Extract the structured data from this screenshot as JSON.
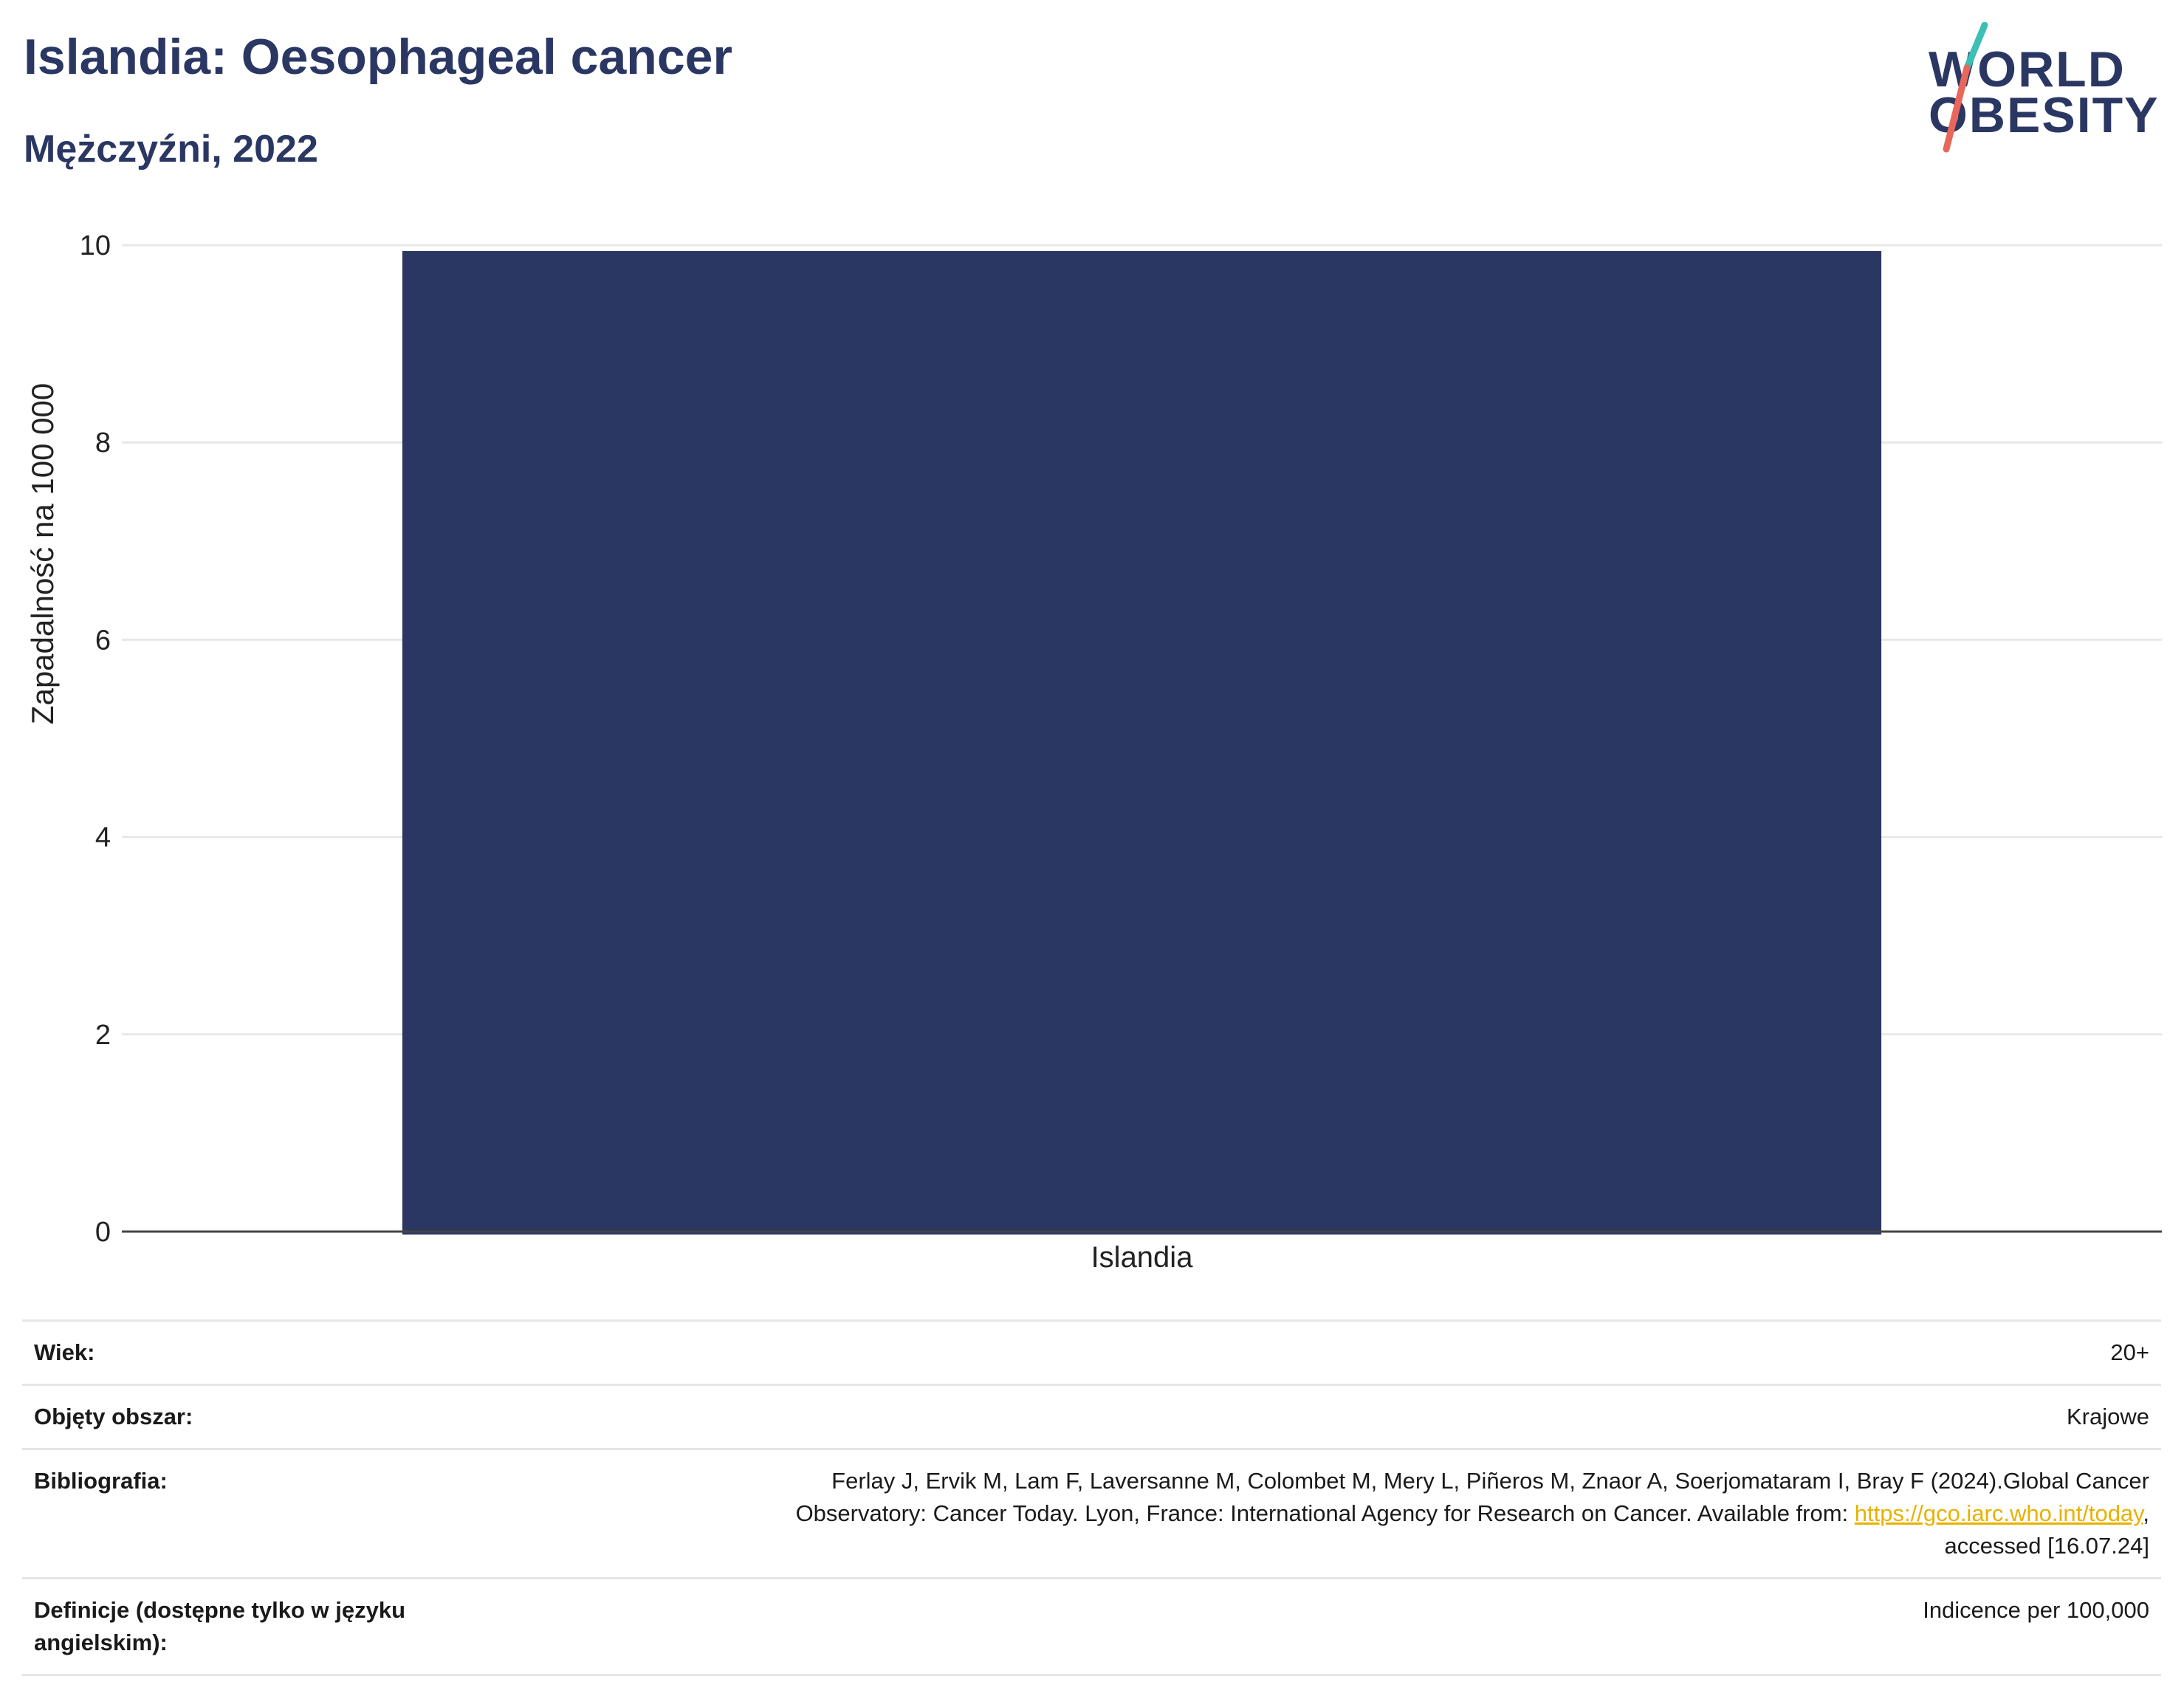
{
  "header": {
    "title": "Islandia: Oesophageal cancer",
    "subtitle": "Mężczyźni, 2022"
  },
  "logo": {
    "line1": "WORLD",
    "line2": "OBESITY",
    "slash_top_color": "#3cbfb4",
    "slash_bottom_color": "#e8665a"
  },
  "chart_data": {
    "type": "bar",
    "title": "Islandia: Oesophageal cancer",
    "subtitle": "Mężczyźni, 2022",
    "categories": [
      "Islandia"
    ],
    "values": [
      9.94
    ],
    "xlabel": "",
    "ylabel": "Zapadalność na 100 000",
    "ylim": [
      0,
      10
    ],
    "yticks": [
      0,
      2,
      4,
      6,
      8,
      10
    ],
    "grid": true,
    "legend": "none",
    "bar_color": "#2b3763"
  },
  "meta": {
    "age_label": "Wiek:",
    "age_value": "20+",
    "area_label": "Objęty obszar:",
    "area_value": "Krajowe",
    "bib_label": "Bibliografia:",
    "bib_line1": "Ferlay J, Ervik M, Lam F, Laversanne M, Colombet M, Mery L, Piñeros M, Znaor A, Soerjomataram I, Bray F (2024).Global Cancer",
    "bib_line2_pre": "Observatory: Cancer Today. Lyon, France: International Agency for Research on Cancer. Available from: ",
    "bib_link": "https://gco.iarc.who.int/today",
    "bib_line2_post": ",",
    "bib_line3": "accessed [16.07.24]",
    "def_label": "Definicje (dostępne tylko w języku angielskim):",
    "def_value": "Indicence per 100,000"
  }
}
